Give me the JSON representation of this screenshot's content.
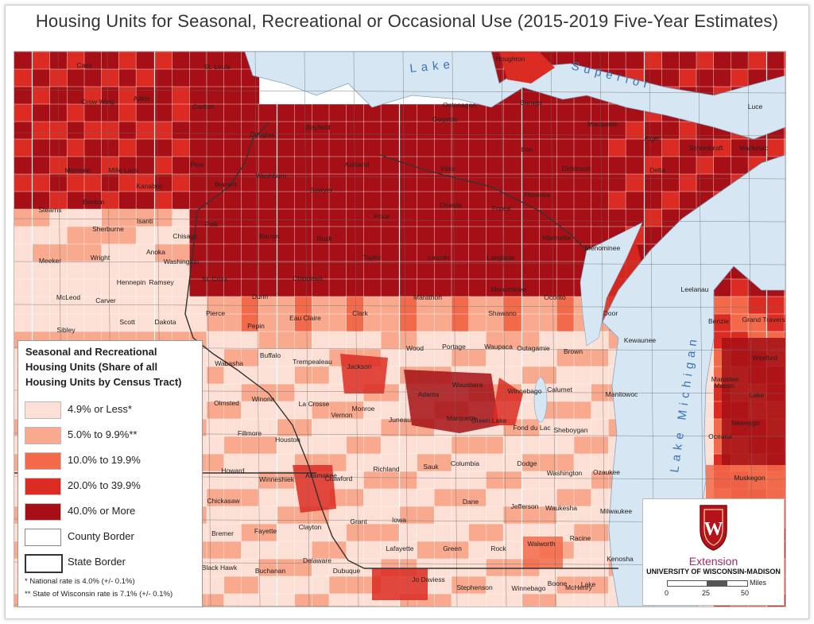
{
  "title": "Housing Units for Seasonal, Recreational or Occasional Use (2015-2019 Five-Year Estimates)",
  "colors": {
    "c1": "#fde0d5",
    "c2": "#f9a98e",
    "c3": "#f26a4a",
    "c4": "#dc2b22",
    "c5": "#a50f15",
    "water": "#d6e6f2",
    "border": "#555555",
    "extension": "#9b2a73"
  },
  "water_labels": {
    "lake_superior_1": "Lake",
    "lake_superior_2": "Superior",
    "lake_michigan": "Lake Michigan"
  },
  "counties": [
    {
      "name": "Cass",
      "class": 5
    },
    {
      "name": "St. Louis",
      "class": 4
    },
    {
      "name": "Houghton",
      "class": 4
    },
    {
      "name": "Crow Wing",
      "class": 5
    },
    {
      "name": "Aitkin",
      "class": 5
    },
    {
      "name": "Carlton",
      "class": 4
    },
    {
      "name": "Ontonagon",
      "class": 5
    },
    {
      "name": "Baraga",
      "class": 4
    },
    {
      "name": "Luce",
      "class": 4
    },
    {
      "name": "Bayfield",
      "class": 5
    },
    {
      "name": "Marquette",
      "class": 4
    },
    {
      "name": "Douglas",
      "class": 5
    },
    {
      "name": "Gogebic",
      "class": 5
    },
    {
      "name": "Alger",
      "class": 5
    },
    {
      "name": "Schoolcraft",
      "class": 5
    },
    {
      "name": "Mackinac",
      "class": 5
    },
    {
      "name": "Iron",
      "class": 5
    },
    {
      "name": "Ashland",
      "class": 4
    },
    {
      "name": "Morrison",
      "class": 1
    },
    {
      "name": "Pine",
      "class": 5
    },
    {
      "name": "Mille Lacs",
      "class": 4
    },
    {
      "name": "Vilas",
      "class": 5
    },
    {
      "name": "Dickinson",
      "class": 4
    },
    {
      "name": "Delta",
      "class": 4
    },
    {
      "name": "Washburn",
      "class": 5
    },
    {
      "name": "Burnett",
      "class": 5
    },
    {
      "name": "Kanabec",
      "class": 4
    },
    {
      "name": "Sawyer",
      "class": 5
    },
    {
      "name": "Florence",
      "class": 5
    },
    {
      "name": "Benton",
      "class": 1
    },
    {
      "name": "Stearns",
      "class": 1
    },
    {
      "name": "Oneida",
      "class": 5
    },
    {
      "name": "Forest",
      "class": 5
    },
    {
      "name": "Price",
      "class": 4
    },
    {
      "name": "Isanti",
      "class": 2
    },
    {
      "name": "Sherburne",
      "class": 1
    },
    {
      "name": "Polk",
      "class": 4
    },
    {
      "name": "Chisago",
      "class": 3
    },
    {
      "name": "Barron",
      "class": 3
    },
    {
      "name": "Rusk",
      "class": 4
    },
    {
      "name": "Marinette",
      "class": 4
    },
    {
      "name": "Menominee",
      "class": 4
    },
    {
      "name": "Meeker",
      "class": 3
    },
    {
      "name": "Anoka",
      "class": 1
    },
    {
      "name": "Taylor",
      "class": 3
    },
    {
      "name": "Lincoln",
      "class": 4
    },
    {
      "name": "Wright",
      "class": 1
    },
    {
      "name": "Washington",
      "class": 1
    },
    {
      "name": "Langlade",
      "class": 4
    },
    {
      "name": "Hennepin",
      "class": 1
    },
    {
      "name": "Ramsey",
      "class": 1
    },
    {
      "name": "St. Croix",
      "class": 1
    },
    {
      "name": "Chippewa",
      "class": 2
    },
    {
      "name": "Menominee",
      "class": 5
    },
    {
      "name": "Leelanau",
      "class": 4
    },
    {
      "name": "McLeod",
      "class": 1
    },
    {
      "name": "Carver",
      "class": 1
    },
    {
      "name": "Dunn",
      "class": 1
    },
    {
      "name": "Marathon",
      "class": 1
    },
    {
      "name": "Oconto",
      "class": 4
    },
    {
      "name": "Shawano",
      "class": 3
    },
    {
      "name": "Scott",
      "class": 1
    },
    {
      "name": "Dakota",
      "class": 1
    },
    {
      "name": "Pierce",
      "class": 1
    },
    {
      "name": "Eau Claire",
      "class": 1
    },
    {
      "name": "Clark",
      "class": 2
    },
    {
      "name": "Door",
      "class": 4
    },
    {
      "name": "Benzie",
      "class": 4
    },
    {
      "name": "Grand Traverse",
      "class": 3
    },
    {
      "name": "Sibley",
      "class": 1
    },
    {
      "name": "Pepin",
      "class": 2
    },
    {
      "name": "Kewaunee",
      "class": 1
    },
    {
      "name": "Buffalo",
      "class": 2
    },
    {
      "name": "Wood",
      "class": 1
    },
    {
      "name": "Portage",
      "class": 1
    },
    {
      "name": "Waupaca",
      "class": 2
    },
    {
      "name": "Outagamie",
      "class": 1
    },
    {
      "name": "Brown",
      "class": 1
    },
    {
      "name": "Manistee",
      "class": 4
    },
    {
      "name": "Wexford",
      "class": 4
    },
    {
      "name": "Wabasha",
      "class": 1
    },
    {
      "name": "Trempealeau",
      "class": 1
    },
    {
      "name": "Jackson",
      "class": 3
    },
    {
      "name": "Adams",
      "class": 5
    },
    {
      "name": "Waushara",
      "class": 4
    },
    {
      "name": "Calumet",
      "class": 1
    },
    {
      "name": "Winnebago",
      "class": 1
    },
    {
      "name": "Manitowoc",
      "class": 1
    },
    {
      "name": "Mason",
      "class": 4
    },
    {
      "name": "Lake",
      "class": 5
    },
    {
      "name": "Olmsted",
      "class": 1
    },
    {
      "name": "Winona",
      "class": 1
    },
    {
      "name": "La Crosse",
      "class": 1
    },
    {
      "name": "Monroe",
      "class": 2
    },
    {
      "name": "Juneau",
      "class": 4
    },
    {
      "name": "Marquette",
      "class": 4
    },
    {
      "name": "Green Lake",
      "class": 3
    },
    {
      "name": "Fond du Lac",
      "class": 1
    },
    {
      "name": "Sheboygan",
      "class": 1
    },
    {
      "name": "Newaygo",
      "class": 4
    },
    {
      "name": "Oceana",
      "class": 3
    },
    {
      "name": "Fillmore",
      "class": 1
    },
    {
      "name": "Houston",
      "class": 1
    },
    {
      "name": "Vernon",
      "class": 2
    },
    {
      "name": "Columbia",
      "class": 2
    },
    {
      "name": "Howard",
      "class": 1
    },
    {
      "name": "Winneshiek",
      "class": 1
    },
    {
      "name": "Allamakee",
      "class": 4
    },
    {
      "name": "Crawford",
      "class": 3
    },
    {
      "name": "Richland",
      "class": 2
    },
    {
      "name": "Sauk",
      "class": 2
    },
    {
      "name": "Dodge",
      "class": 1
    },
    {
      "name": "Washington",
      "class": 1
    },
    {
      "name": "Ozaukee",
      "class": 1
    },
    {
      "name": "Muskegon",
      "class": 2
    },
    {
      "name": "Chickasaw",
      "class": 1
    },
    {
      "name": "Dane",
      "class": 1
    },
    {
      "name": "Jefferson",
      "class": 1
    },
    {
      "name": "Waukesha",
      "class": 1
    },
    {
      "name": "Milwaukee",
      "class": 1
    },
    {
      "name": "Grant",
      "class": 2
    },
    {
      "name": "Iowa",
      "class": 1
    },
    {
      "name": "Fayette",
      "class": 1
    },
    {
      "name": "Clayton",
      "class": 2
    },
    {
      "name": "Bremer",
      "class": 1
    },
    {
      "name": "Walworth",
      "class": 3
    },
    {
      "name": "Racine",
      "class": 1
    },
    {
      "name": "Lafayette",
      "class": 1
    },
    {
      "name": "Green",
      "class": 1
    },
    {
      "name": "Rock",
      "class": 1
    },
    {
      "name": "Kenosha",
      "class": 1
    },
    {
      "name": "Black Hawk",
      "class": 1
    },
    {
      "name": "Buchanan",
      "class": 1
    },
    {
      "name": "Delaware",
      "class": 1
    },
    {
      "name": "Dubuque",
      "class": 1
    },
    {
      "name": "Jo Daviess",
      "class": 4
    },
    {
      "name": "Stephenson",
      "class": 1
    },
    {
      "name": "Winnebago",
      "class": 1
    },
    {
      "name": "Boone",
      "class": 1
    },
    {
      "name": "McHenry",
      "class": 1
    },
    {
      "name": "Lake",
      "class": 1
    }
  ],
  "legend": {
    "title": "Seasonal and Recreational Housing Units (Share of all Housing Units by Census Tract)",
    "items": [
      {
        "label": "4.9% or Less*",
        "color": "#fde0d5"
      },
      {
        "label": "5.0% to 9.9%**",
        "color": "#f9a98e"
      },
      {
        "label": "10.0% to 19.9%",
        "color": "#f26a4a"
      },
      {
        "label": "20.0% to 39.9%",
        "color": "#dc2b22"
      },
      {
        "label": "40.0% or More",
        "color": "#a50f15"
      }
    ],
    "county_border": "County Border",
    "state_border": "State Border",
    "note1": "*  National rate is 4.0% (+/- 0.1%)",
    "note2": "** State of Wisconsin rate is 7.1% (+/- 0.1%)"
  },
  "logo": {
    "shield_letter": "W",
    "extension": "Extension",
    "university": "UNIVERSITY OF WISCONSIN-MADISON",
    "scale_ticks": [
      "0",
      "25",
      "50"
    ],
    "scale_unit": "Miles"
  }
}
